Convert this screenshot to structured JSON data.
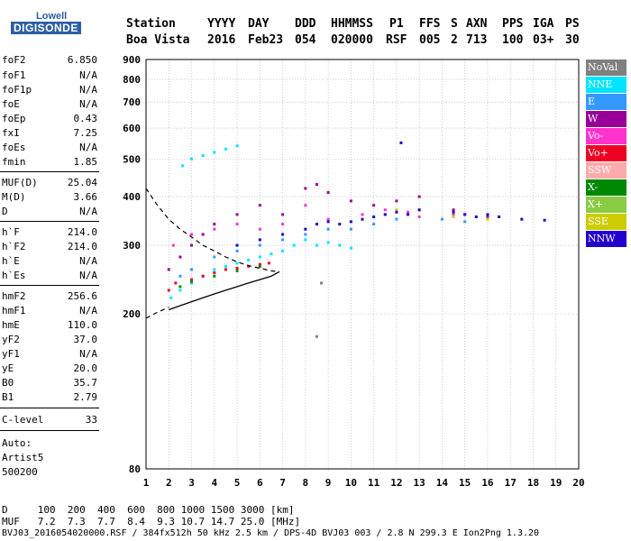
{
  "logo": {
    "lowell": "Lowell",
    "digisonde": "DIGISONDE"
  },
  "header": {
    "row1": [
      {
        "key": "station",
        "text": "Station"
      },
      {
        "key": "yyyy",
        "text": "YYYY"
      },
      {
        "key": "day",
        "text": "DAY"
      },
      {
        "key": "ddd",
        "text": "DDD"
      },
      {
        "key": "hhmmss",
        "text": "HHMMSS"
      },
      {
        "key": "p1",
        "text": "P1"
      },
      {
        "key": "ffs",
        "text": "FFS"
      },
      {
        "key": "s",
        "text": "S"
      },
      {
        "key": "axn",
        "text": "AXN"
      },
      {
        "key": "pps",
        "text": "PPS"
      },
      {
        "key": "iga",
        "text": "IGA"
      },
      {
        "key": "ps",
        "text": "PS"
      }
    ],
    "row2": [
      {
        "key": "station",
        "text": "Boa Vista"
      },
      {
        "key": "yyyy",
        "text": "2016"
      },
      {
        "key": "day",
        "text": "Feb23"
      },
      {
        "key": "ddd",
        "text": "054"
      },
      {
        "key": "hhmmss",
        "text": "020000"
      },
      {
        "key": "p1",
        "text": "RSF"
      },
      {
        "key": "ffs",
        "text": "005"
      },
      {
        "key": "s",
        "text": "2"
      },
      {
        "key": "axn",
        "text": "713"
      },
      {
        "key": "pps",
        "text": "100"
      },
      {
        "key": "iga",
        "text": "03+"
      },
      {
        "key": "ps",
        "text": "30"
      }
    ]
  },
  "params": [
    {
      "name": "foF2",
      "value": "6.850"
    },
    {
      "name": "foF1",
      "value": "N/A"
    },
    {
      "name": "foF1p",
      "value": "N/A"
    },
    {
      "name": "foE",
      "value": "N/A"
    },
    {
      "name": "foEp",
      "value": "0.43"
    },
    {
      "name": "fxI",
      "value": "7.25"
    },
    {
      "name": "foEs",
      "value": "N/A"
    },
    {
      "name": "fmin",
      "value": "1.85"
    },
    {
      "name": "MUF(D)",
      "value": "25.04"
    },
    {
      "name": "M(D)",
      "value": "3.66"
    },
    {
      "name": "D",
      "value": "N/A"
    },
    {
      "name": "h`F",
      "value": "214.0"
    },
    {
      "name": "h`F2",
      "value": "214.0"
    },
    {
      "name": "h`E",
      "value": "N/A"
    },
    {
      "name": "h`Es",
      "value": "N/A"
    },
    {
      "name": "hmF2",
      "value": "256.6"
    },
    {
      "name": "hmF1",
      "value": "N/A"
    },
    {
      "name": "hmE",
      "value": "110.0"
    },
    {
      "name": "yF2",
      "value": "37.0"
    },
    {
      "name": "yF1",
      "value": "N/A"
    },
    {
      "name": "yE",
      "value": "20.0"
    },
    {
      "name": "B0",
      "value": "35.7"
    },
    {
      "name": "B1",
      "value": "2.79"
    },
    {
      "name": "C-level",
      "value": "33"
    }
  ],
  "autoscale": {
    "label": "Auto:",
    "name": "Artist5",
    "id": "500200"
  },
  "legend": [
    {
      "label": "NoVal",
      "color": "#808080"
    },
    {
      "label": "NNE",
      "color": "#00e5ff"
    },
    {
      "label": "E",
      "color": "#3399ff"
    },
    {
      "label": "W",
      "color": "#990099"
    },
    {
      "label": "Vo-",
      "color": "#ff33cc"
    },
    {
      "label": "Vo+",
      "color": "#ee0022"
    },
    {
      "label": "SSW",
      "color": "#ffaaaa"
    },
    {
      "label": "X-",
      "color": "#008800"
    },
    {
      "label": "X+",
      "color": "#88cc44"
    },
    {
      "label": "SSE",
      "color": "#cccc00"
    },
    {
      "label": "NNW",
      "color": "#2200cc"
    }
  ],
  "footer": {
    "d_line": "D     100  200  400  600  800 1000 1500 3000 [km]",
    "muf_line": "MUF   7.2  7.3  7.7  8.4  9.3 10.7 14.7 25.0 [MHz]",
    "file_line": "BVJ03_2016054020000.RSF / 384fx512h 50 kHz 2.5 km / DPS-4D BVJ03 003 / 2.8 N 299.3 E Ion2Png 1.3.20"
  },
  "chart_data": {
    "type": "scatter",
    "title": "",
    "xlabel": "",
    "ylabel": "",
    "xlim": [
      1,
      20
    ],
    "ylim": [
      80,
      900
    ],
    "x_ticks": [
      1,
      2,
      3,
      4,
      5,
      6,
      7,
      8,
      9,
      10,
      11,
      12,
      13,
      14,
      15,
      16,
      17,
      18,
      19,
      20
    ],
    "y_ticks": [
      80,
      200,
      300,
      400,
      500,
      600,
      700,
      800,
      900
    ],
    "y_scale": "log",
    "grid": true,
    "legend_position": "right",
    "series": [
      {
        "name": "NNE",
        "color": "#00e5ff",
        "points": [
          [
            2.1,
            220
          ],
          [
            2.5,
            230
          ],
          [
            3.0,
            240
          ],
          [
            3.5,
            250
          ],
          [
            4.0,
            260
          ],
          [
            4.5,
            265
          ],
          [
            5.0,
            270
          ],
          [
            5.5,
            275
          ],
          [
            6.0,
            280
          ],
          [
            6.5,
            285
          ],
          [
            7.0,
            290
          ],
          [
            7.5,
            300
          ],
          [
            8.0,
            310
          ],
          [
            8.5,
            300
          ],
          [
            9.0,
            305
          ],
          [
            9.5,
            300
          ],
          [
            10.0,
            295
          ],
          [
            2.6,
            480
          ],
          [
            3.0,
            500
          ],
          [
            3.5,
            510
          ],
          [
            4.0,
            520
          ],
          [
            4.5,
            530
          ],
          [
            5.0,
            540
          ]
        ]
      },
      {
        "name": "E",
        "color": "#3399ff",
        "points": [
          [
            2.5,
            250
          ],
          [
            3.0,
            260
          ],
          [
            4.0,
            280
          ],
          [
            5.0,
            290
          ],
          [
            6.0,
            300
          ],
          [
            7.0,
            310
          ],
          [
            8.0,
            320
          ],
          [
            9.0,
            330
          ],
          [
            10.0,
            330
          ],
          [
            11.0,
            340
          ],
          [
            12.0,
            350
          ],
          [
            14.0,
            350
          ],
          [
            15.0,
            345
          ]
        ]
      },
      {
        "name": "W",
        "color": "#990099",
        "points": [
          [
            2.0,
            260
          ],
          [
            2.5,
            280
          ],
          [
            3.0,
            300
          ],
          [
            3.5,
            320
          ],
          [
            4.0,
            340
          ],
          [
            5.0,
            360
          ],
          [
            6.0,
            380
          ],
          [
            7.0,
            360
          ],
          [
            8.0,
            420
          ],
          [
            8.5,
            430
          ],
          [
            9.0,
            410
          ],
          [
            10.0,
            390
          ],
          [
            11.0,
            380
          ],
          [
            12.0,
            390
          ],
          [
            13.0,
            400
          ],
          [
            14.5,
            370
          ],
          [
            15.0,
            360
          ],
          [
            16.0,
            355
          ]
        ]
      },
      {
        "name": "Vo-",
        "color": "#ff33cc",
        "points": [
          [
            2.2,
            300
          ],
          [
            3.0,
            320
          ],
          [
            4.0,
            330
          ],
          [
            5.0,
            340
          ],
          [
            6.0,
            330
          ],
          [
            7.0,
            340
          ],
          [
            8.0,
            380
          ],
          [
            9.0,
            350
          ],
          [
            10.5,
            360
          ],
          [
            11.5,
            370
          ],
          [
            12.5,
            365
          ],
          [
            13.0,
            355
          ],
          [
            14.5,
            360
          ]
        ]
      },
      {
        "name": "Vo+",
        "color": "#ee0022",
        "points": [
          [
            2.0,
            230
          ],
          [
            2.3,
            240
          ],
          [
            3.0,
            245
          ],
          [
            3.5,
            250
          ],
          [
            4.0,
            255
          ],
          [
            4.5,
            260
          ],
          [
            5.0,
            262
          ],
          [
            5.5,
            265
          ],
          [
            6.0,
            268
          ],
          [
            6.4,
            270
          ]
        ]
      },
      {
        "name": "X-",
        "color": "#008800",
        "points": [
          [
            2.5,
            235
          ],
          [
            3.0,
            242
          ],
          [
            4.0,
            250
          ],
          [
            5.0,
            258
          ],
          [
            6.0,
            265
          ]
        ]
      },
      {
        "name": "SSE",
        "color": "#cccc00",
        "points": [
          [
            11.5,
            360
          ],
          [
            12.0,
            370
          ],
          [
            13.0,
            370
          ],
          [
            14.5,
            355
          ],
          [
            16.0,
            350
          ]
        ]
      },
      {
        "name": "NNW",
        "color": "#2200cc",
        "points": [
          [
            5.0,
            300
          ],
          [
            6.0,
            310
          ],
          [
            7.0,
            320
          ],
          [
            8.0,
            330
          ],
          [
            8.5,
            340
          ],
          [
            9.0,
            345
          ],
          [
            9.5,
            340
          ],
          [
            10.0,
            345
          ],
          [
            10.5,
            350
          ],
          [
            11.0,
            355
          ],
          [
            11.5,
            360
          ],
          [
            12.0,
            365
          ],
          [
            12.5,
            360
          ],
          [
            13.0,
            370
          ],
          [
            14.5,
            365
          ],
          [
            15.0,
            360
          ],
          [
            15.5,
            355
          ],
          [
            16.0,
            360
          ],
          [
            16.5,
            355
          ],
          [
            17.5,
            350
          ],
          [
            18.5,
            348
          ],
          [
            12.2,
            550
          ]
        ]
      },
      {
        "name": "NoVal",
        "color": "#808080",
        "points": [
          [
            8.7,
            240
          ],
          [
            8.5,
            175
          ]
        ]
      }
    ],
    "fitted_profile": [
      [
        2.0,
        205
      ],
      [
        2.5,
        210
      ],
      [
        3.0,
        215
      ],
      [
        3.5,
        220
      ],
      [
        4.0,
        225
      ],
      [
        4.5,
        230
      ],
      [
        5.0,
        235
      ],
      [
        5.5,
        240
      ],
      [
        6.0,
        245
      ],
      [
        6.5,
        250
      ],
      [
        6.85,
        256.6
      ]
    ],
    "fitted_profile_dashed": [
      [
        1.0,
        420
      ],
      [
        1.5,
        380
      ],
      [
        2.0,
        350
      ],
      [
        2.5,
        330
      ],
      [
        3.0,
        315
      ],
      [
        3.5,
        300
      ],
      [
        4.0,
        290
      ],
      [
        4.5,
        280
      ],
      [
        5.0,
        272
      ],
      [
        5.5,
        266
      ],
      [
        6.0,
        262
      ],
      [
        6.5,
        258
      ],
      [
        6.85,
        256.6
      ]
    ],
    "lower_curve": [
      [
        1.0,
        195
      ],
      [
        1.5,
        202
      ],
      [
        2.0,
        208
      ]
    ]
  }
}
